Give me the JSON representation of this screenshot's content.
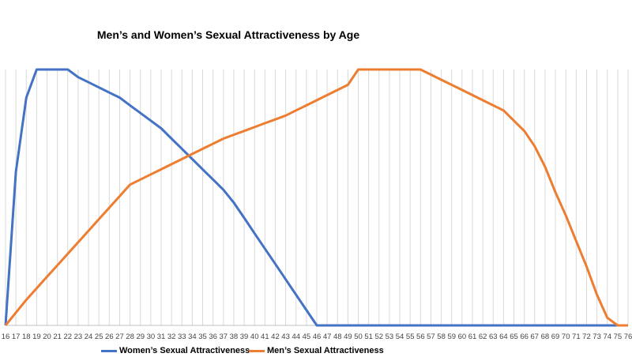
{
  "chart_data": {
    "type": "line",
    "title": "Men’s and Women’s Sexual Attractiveness by Age",
    "xlabel": "",
    "ylabel": "",
    "x": [
      16,
      17,
      18,
      19,
      20,
      21,
      22,
      23,
      24,
      25,
      26,
      27,
      28,
      29,
      30,
      31,
      32,
      33,
      34,
      35,
      36,
      37,
      38,
      39,
      40,
      41,
      42,
      43,
      44,
      45,
      46,
      47,
      48,
      49,
      50,
      51,
      52,
      53,
      54,
      55,
      56,
      57,
      58,
      59,
      60,
      61,
      62,
      63,
      64,
      65,
      66,
      67,
      68,
      69,
      70,
      71,
      72,
      73,
      74,
      75,
      76
    ],
    "ylim": [
      0,
      100
    ],
    "grid": "vertical",
    "legend": "bottom",
    "series": [
      {
        "name": "Women’s Sexual Attractiveness",
        "color": "#4472C4",
        "values": [
          0,
          60,
          89,
          100,
          100,
          100,
          100,
          97,
          95,
          93,
          91,
          89,
          86,
          83,
          80,
          77,
          73,
          69,
          65,
          61,
          57,
          53,
          48,
          42,
          36,
          30,
          24,
          18,
          12,
          6,
          0,
          0,
          0,
          0,
          0,
          0,
          0,
          0,
          0,
          0,
          0,
          0,
          0,
          0,
          0,
          0,
          0,
          0,
          0,
          0,
          0,
          0,
          0,
          0,
          0,
          0,
          0,
          0,
          0,
          0,
          0
        ]
      },
      {
        "name": "Men’s Sexual Attractiveness",
        "color": "#ED7D31",
        "values": [
          0,
          5,
          10,
          14.5,
          19,
          23.5,
          28,
          32.5,
          37,
          41.5,
          46,
          50.5,
          55,
          57,
          59,
          61,
          63,
          65,
          67,
          69,
          71,
          73,
          74.5,
          76,
          77.5,
          79,
          80.5,
          82,
          84,
          86,
          88,
          90,
          92,
          94,
          100,
          100,
          100,
          100,
          100,
          100,
          100,
          98,
          96,
          94,
          92,
          90,
          88,
          86,
          84,
          80,
          76,
          70,
          62,
          52,
          43,
          33,
          23,
          12,
          3,
          0,
          0
        ]
      }
    ]
  },
  "x_ticks": [
    "16",
    "17",
    "18",
    "19",
    "20",
    "21",
    "22",
    "23",
    "24",
    "25",
    "26",
    "27",
    "28",
    "29",
    "30",
    "31",
    "32",
    "33",
    "34",
    "35",
    "36",
    "37",
    "38",
    "39",
    "40",
    "41",
    "42",
    "43",
    "44",
    "45",
    "46",
    "47",
    "48",
    "49",
    "50",
    "51",
    "52",
    "53",
    "54",
    "55",
    "56",
    "57",
    "58",
    "59",
    "60",
    "61",
    "62",
    "63",
    "64",
    "65",
    "66",
    "67",
    "68",
    "69",
    "70",
    "71",
    "72",
    "73",
    "74",
    "75",
    "76"
  ]
}
